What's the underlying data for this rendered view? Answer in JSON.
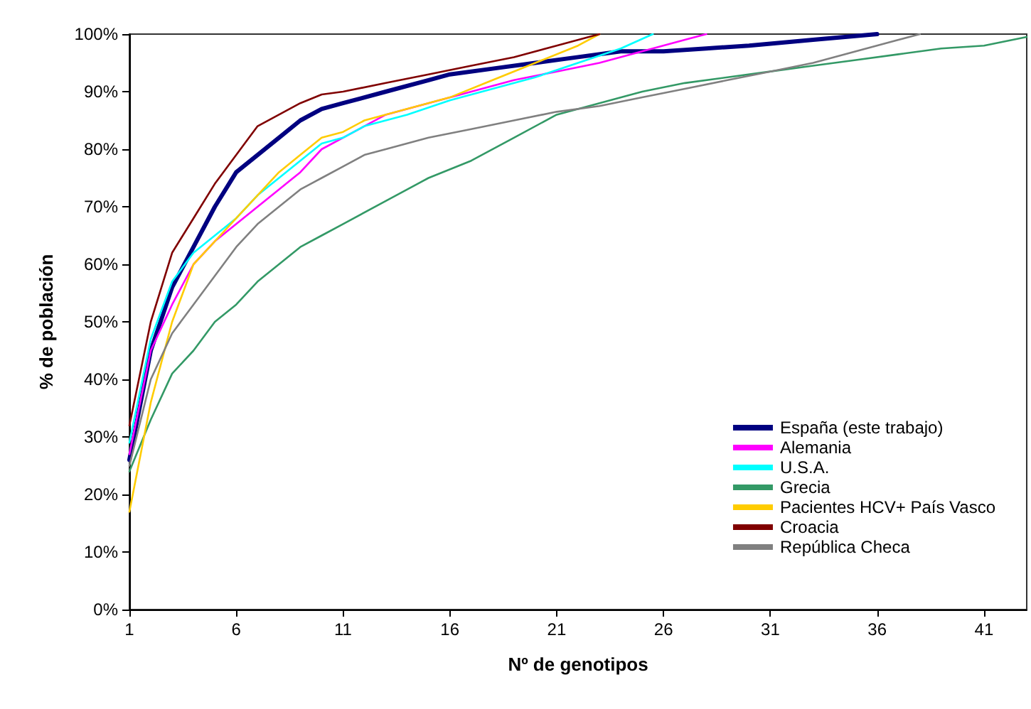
{
  "chart_data": {
    "type": "line",
    "xlabel": "Nº de genotipos",
    "ylabel": "% de población",
    "xlim": [
      1,
      43
    ],
    "xticks": [
      1,
      6,
      11,
      16,
      21,
      26,
      31,
      36,
      41
    ],
    "ylim": [
      0,
      100
    ],
    "yticks": [
      {
        "value": 0,
        "label": "0%"
      },
      {
        "value": 10,
        "label": "10%"
      },
      {
        "value": 20,
        "label": "20%"
      },
      {
        "value": 30,
        "label": "30%"
      },
      {
        "value": 40,
        "label": "40%"
      },
      {
        "value": 50,
        "label": "50%"
      },
      {
        "value": 60,
        "label": "60%"
      },
      {
        "value": 70,
        "label": "70%"
      },
      {
        "value": 80,
        "label": "80%"
      },
      {
        "value": 90,
        "label": "90%"
      },
      {
        "value": 100,
        "label": "100%"
      }
    ],
    "grid": false,
    "legend": "bottom right",
    "marker": "none",
    "line_style": "solid",
    "series": [
      {
        "name": "España (este trabajo)",
        "color": "#000080",
        "x": [
          1,
          2,
          3,
          4,
          5,
          6,
          7,
          8,
          9,
          10,
          11,
          13,
          15,
          16,
          18,
          20,
          22,
          24,
          26,
          28,
          30,
          33,
          36
        ],
        "values": [
          26,
          45,
          56,
          63,
          70,
          76,
          79,
          82,
          85,
          87,
          88,
          90,
          92,
          93,
          94,
          95,
          96,
          97,
          97,
          97.5,
          98,
          99,
          100
        ]
      },
      {
        "name": "Alemania",
        "color": "#ff00ff",
        "x": [
          1,
          2,
          3,
          4,
          5,
          6,
          7,
          8,
          9,
          10,
          11,
          12,
          13,
          15,
          17,
          19,
          21,
          23,
          25,
          27,
          28
        ],
        "values": [
          27,
          45,
          53,
          60,
          64,
          67,
          70,
          73,
          76,
          80,
          82,
          84,
          86,
          88,
          90,
          92,
          93.5,
          95,
          97,
          99,
          100
        ]
      },
      {
        "name": "U.S.A.",
        "color": "#00ffff",
        "x": [
          1,
          2,
          3,
          4,
          5,
          6,
          7,
          8,
          9,
          10,
          11,
          12,
          14,
          16,
          18,
          20,
          22,
          24,
          25.5
        ],
        "values": [
          29,
          47,
          57,
          62,
          65,
          68,
          72,
          75,
          78,
          81,
          82,
          84,
          86,
          88.5,
          90.5,
          92.5,
          95,
          97.5,
          100
        ]
      },
      {
        "name": "Grecia",
        "color": "#339966",
        "x": [
          1,
          2,
          3,
          4,
          5,
          6,
          7,
          8,
          9,
          10,
          11,
          13,
          15,
          17,
          19,
          21,
          23,
          25,
          27,
          29,
          31,
          33,
          35,
          37,
          39,
          41,
          43
        ],
        "values": [
          24,
          33,
          41,
          45,
          50,
          53,
          57,
          60,
          63,
          65,
          67,
          71,
          75,
          78,
          82,
          86,
          88,
          90,
          91.5,
          92.5,
          93.5,
          94.5,
          95.5,
          96.5,
          97.5,
          98,
          99.5
        ]
      },
      {
        "name": "Pacientes HCV+ País Vasco",
        "color": "#ffcc00",
        "x": [
          1,
          2,
          3,
          4,
          5,
          6,
          7,
          8,
          9,
          10,
          11,
          12,
          14,
          16,
          18,
          20,
          22,
          23
        ],
        "values": [
          17,
          36,
          50,
          60,
          64,
          68,
          72,
          76,
          79,
          82,
          83,
          85,
          87,
          89,
          92,
          95,
          98,
          100
        ]
      },
      {
        "name": "Croacia",
        "color": "#800000",
        "x": [
          1,
          2,
          3,
          4,
          5,
          6,
          7,
          8,
          9,
          10,
          11,
          13,
          15,
          17,
          19,
          21,
          23
        ],
        "values": [
          32,
          50,
          62,
          68,
          74,
          79,
          84,
          86,
          88,
          89.5,
          90,
          91.5,
          93,
          94.5,
          96,
          98,
          100
        ]
      },
      {
        "name": "República Checa",
        "color": "#808080",
        "x": [
          1,
          2,
          3,
          4,
          5,
          6,
          7,
          8,
          9,
          10,
          11,
          12,
          13,
          15,
          17,
          19,
          21,
          23,
          25,
          27,
          29,
          31,
          33,
          35,
          37,
          38
        ],
        "values": [
          25,
          40,
          48,
          53,
          58,
          63,
          67,
          70,
          73,
          75,
          77,
          79,
          80,
          82,
          83.5,
          85,
          86.5,
          87.5,
          89,
          90.5,
          92,
          93.5,
          95,
          97,
          99,
          100
        ]
      }
    ]
  }
}
